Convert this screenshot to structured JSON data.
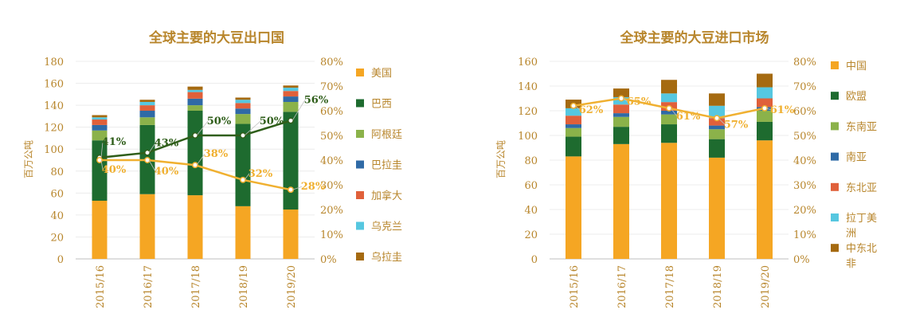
{
  "chart_data": [
    {
      "type": "bar",
      "title": "全球主要的大豆出口国",
      "ylabel": "百万公吨",
      "ylim": [
        0,
        180
      ],
      "y2lim": [
        0,
        0.8
      ],
      "yticks": [
        "0",
        "20",
        "40",
        "60",
        "80",
        "100",
        "120",
        "140",
        "160",
        "180"
      ],
      "y2ticks": [
        "0%",
        "10%",
        "20%",
        "30%",
        "40%",
        "50%",
        "60%",
        "70%",
        "80%"
      ],
      "categories": [
        "2015/16",
        "2016/17",
        "2017/18",
        "2018/19",
        "2019/20"
      ],
      "legend_position": "right",
      "stacked": true,
      "series": [
        {
          "name": "美国",
          "color": "#f5a623",
          "values": [
            53,
            59,
            58,
            48,
            45
          ]
        },
        {
          "name": "巴西",
          "color": "#1e6b2f",
          "values": [
            55,
            63,
            77,
            75,
            89
          ]
        },
        {
          "name": "阿根廷",
          "color": "#8bb24a",
          "values": [
            9,
            7,
            5,
            9,
            9
          ]
        },
        {
          "name": "巴拉圭",
          "color": "#2f6aa6",
          "values": [
            5,
            6,
            6,
            5,
            5
          ]
        },
        {
          "name": "加拿大",
          "color": "#e0603a",
          "values": [
            5,
            5,
            6,
            5,
            5
          ]
        },
        {
          "name": "乌克兰",
          "color": "#56c7e0",
          "values": [
            2,
            3,
            2,
            3,
            3
          ]
        },
        {
          "name": "乌拉圭",
          "color": "#a56a10",
          "values": [
            2,
            2,
            3,
            2,
            2
          ]
        }
      ],
      "lines": [
        {
          "color": "#2f5e1a",
          "values": [
            0.41,
            0.43,
            0.5,
            0.5,
            0.56
          ],
          "labels": [
            "41%",
            "43%",
            "50%",
            "50%",
            "56%"
          ]
        },
        {
          "color": "#f0b030",
          "values": [
            0.4,
            0.4,
            0.38,
            0.32,
            0.28
          ],
          "labels": [
            "40%",
            "40%",
            "38%",
            "32%",
            "28%"
          ]
        }
      ]
    },
    {
      "type": "bar",
      "title": "全球主要的大豆进口市场",
      "ylabel": "百万公吨",
      "ylim": [
        0,
        160
      ],
      "y2lim": [
        0,
        0.8
      ],
      "yticks": [
        "0",
        "20",
        "40",
        "60",
        "80",
        "100",
        "120",
        "140",
        "160"
      ],
      "y2ticks": [
        "0%",
        "10%",
        "20%",
        "30%",
        "40%",
        "50%",
        "60%",
        "70%",
        "80%"
      ],
      "categories": [
        "2015/16",
        "2016/17",
        "2017/18",
        "2018/19",
        "2019/20"
      ],
      "legend_position": "right",
      "stacked": true,
      "series": [
        {
          "name": "中国",
          "color": "#f5a623",
          "values": [
            83,
            93,
            94,
            82,
            96
          ]
        },
        {
          "name": "欧盟",
          "color": "#1e6b2f",
          "values": [
            16,
            14,
            15,
            15,
            15
          ]
        },
        {
          "name": "东南亚",
          "color": "#8bb24a",
          "values": [
            7,
            8,
            8,
            8,
            9
          ]
        },
        {
          "name": "南亚",
          "color": "#2f6aa6",
          "values": [
            3,
            3,
            3,
            3,
            3
          ]
        },
        {
          "name": "东北亚",
          "color": "#e0603a",
          "values": [
            7,
            7,
            7,
            6,
            7
          ]
        },
        {
          "name": "拉丁美洲",
          "color": "#56c7e0",
          "values": [
            6,
            6,
            7,
            10,
            9
          ]
        },
        {
          "name": "中东北非",
          "color": "#a56a10",
          "values": [
            7,
            7,
            11,
            10,
            11
          ]
        }
      ],
      "lines": [
        {
          "color": "#f0b030",
          "values": [
            0.62,
            0.65,
            0.61,
            0.57,
            0.61
          ],
          "labels": [
            "62%",
            "65%",
            "61%",
            "57%",
            "61%"
          ]
        }
      ]
    }
  ]
}
